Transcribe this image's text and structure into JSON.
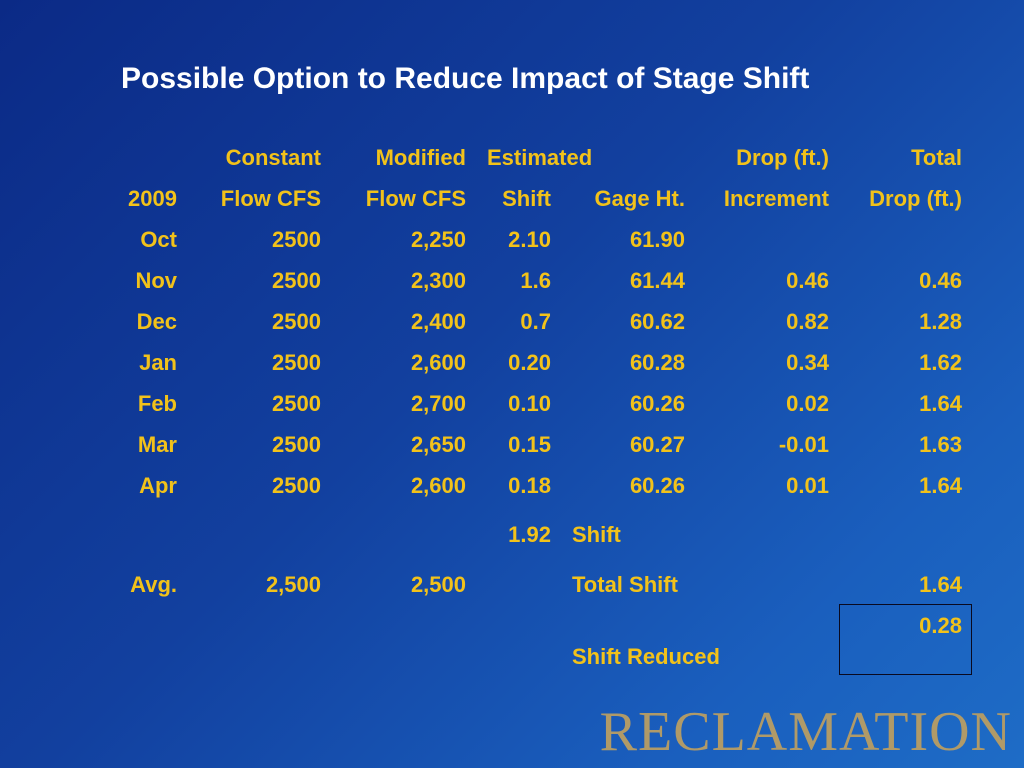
{
  "title": "Possible Option to Reduce Impact of Stage Shift",
  "table": {
    "headers_row1": [
      "",
      "Constant",
      "Modified",
      "Estimated",
      "",
      "Drop (ft.)",
      "Total"
    ],
    "headers_row2": [
      "2009",
      "Flow CFS",
      "Flow CFS",
      "Shift",
      "Gage Ht.",
      "Increment",
      "Drop (ft.)"
    ],
    "rows": [
      [
        "Oct",
        "2500",
        "2,250",
        "2.10",
        "61.90",
        "",
        ""
      ],
      [
        "Nov",
        "2500",
        "2,300",
        "1.6",
        "61.44",
        "0.46",
        "0.46"
      ],
      [
        "Dec",
        "2500",
        "2,400",
        "0.7",
        "60.62",
        "0.82",
        "1.28"
      ],
      [
        "Jan",
        "2500",
        "2,600",
        "0.20",
        "60.28",
        "0.34",
        "1.62"
      ],
      [
        "Feb",
        "2500",
        "2,700",
        "0.10",
        "60.26",
        "0.02",
        "1.64"
      ],
      [
        "Mar",
        "2500",
        "2,650",
        "0.15",
        "60.27",
        "-0.01",
        "1.63"
      ],
      [
        "Apr",
        "2500",
        "2,600",
        "0.18",
        "60.26",
        "0.01",
        "1.64"
      ]
    ],
    "shift_row": {
      "value": "1.92",
      "label": "Shift"
    },
    "avg_row": {
      "label": "Avg.",
      "constant": "2,500",
      "modified": "2,500",
      "total_shift_label": "Total Shift",
      "total_shift_value": "1.64"
    },
    "reduced_row": {
      "label": "Shift Reduced",
      "value": "0.28"
    }
  },
  "logo": "RECLAMATION",
  "colors": {
    "text": "#f2c21a",
    "title": "#ffffff",
    "background_start": "#0b2a86",
    "background_end": "#1e6cc6",
    "logo": "#b09a68"
  }
}
